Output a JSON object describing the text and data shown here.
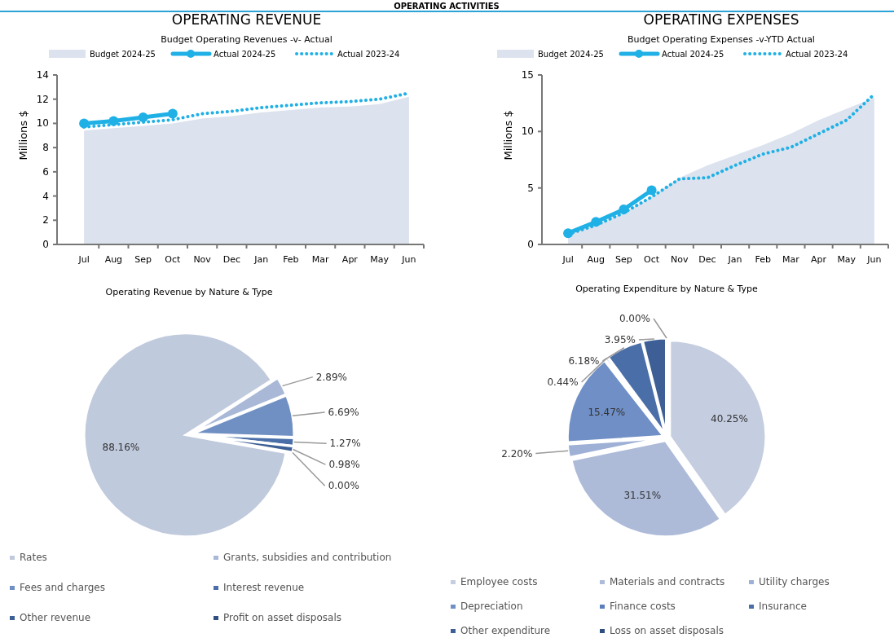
{
  "chart_data": [
    {
      "type": "line",
      "title": "OPERATING REVENUE",
      "subtitle": "Budget Operating Revenues -v- Actual",
      "ylabel": "Millions $",
      "annotations": [
        "OPERATING ACTIVITIES"
      ],
      "categories": [
        "Jul",
        "Aug",
        "Sep",
        "Oct",
        "Nov",
        "Dec",
        "Jan",
        "Feb",
        "Mar",
        "Apr",
        "May",
        "Jun"
      ],
      "ylim": [
        0,
        14
      ],
      "yticks": [
        0,
        2,
        4,
        6,
        8,
        10,
        12,
        14
      ],
      "legend": "top",
      "series": [
        {
          "name": "Budget 2024-25",
          "type": "area",
          "color": "#dce3ee",
          "values": [
            9.4,
            9.6,
            9.8,
            10.0,
            10.4,
            10.6,
            10.9,
            11.1,
            11.3,
            11.4,
            11.6,
            12.2
          ]
        },
        {
          "name": "Actual 2024-25",
          "color": "#1fb0e6",
          "marker": "circle",
          "line_style": "solid",
          "values": [
            10.0,
            10.2,
            10.5,
            10.8,
            null,
            null,
            null,
            null,
            null,
            null,
            null,
            null
          ]
        },
        {
          "name": "Actual 2023-24",
          "color": "#1fb0e6",
          "marker": "none",
          "line_style": "dotted",
          "values": [
            9.7,
            9.9,
            10.1,
            10.3,
            10.8,
            11.0,
            11.3,
            11.5,
            11.7,
            11.8,
            12.0,
            12.5
          ]
        }
      ]
    },
    {
      "type": "line",
      "title": "OPERATING EXPENSES",
      "subtitle": "Budget Operating Expenses -v-YTD Actual",
      "ylabel": "Millions $",
      "categories": [
        "Jul",
        "Aug",
        "Sep",
        "Oct",
        "Nov",
        "Dec",
        "Jan",
        "Feb",
        "Mar",
        "Apr",
        "May",
        "Jun"
      ],
      "ylim": [
        0,
        15
      ],
      "yticks": [
        0,
        5,
        10,
        15
      ],
      "legend": "top",
      "series": [
        {
          "name": "Budget 2024-25",
          "type": "area",
          "color": "#dce3ee",
          "values": [
            0.9,
            1.8,
            2.8,
            4.2,
            5.9,
            7.0,
            7.9,
            8.8,
            9.8,
            11.0,
            12.0,
            13.0
          ]
        },
        {
          "name": "Actual 2024-25",
          "color": "#1fb0e6",
          "marker": "circle",
          "line_style": "solid",
          "values": [
            1.0,
            2.0,
            3.1,
            4.8,
            null,
            null,
            null,
            null,
            null,
            null,
            null,
            null
          ]
        },
        {
          "name": "Actual 2023-24",
          "color": "#1fb0e6",
          "marker": "none",
          "line_style": "dotted",
          "values": [
            0.9,
            1.7,
            2.8,
            4.2,
            5.8,
            5.9,
            7.0,
            8.0,
            8.6,
            9.8,
            11.0,
            13.3
          ]
        }
      ]
    },
    {
      "type": "pie",
      "title": "Operating Revenue by Nature & Type",
      "legend": "bottom",
      "categories": [
        "Rates",
        "Grants, subsidies and contribution",
        "Fees and charges",
        "Interest revenue",
        "Other revenue",
        "Profit on asset disposals"
      ],
      "values": [
        88.16,
        2.89,
        6.69,
        1.27,
        0.98,
        0.0
      ],
      "value_labels": [
        "88.16%",
        "2.89%",
        "6.69%",
        "1.27%",
        "0.98%",
        "0.00%"
      ],
      "colors": [
        "#c0cadd",
        "#a9b8d6",
        "#7090c4",
        "#4a6fa8",
        "#3c5f95",
        "#2f4f80"
      ]
    },
    {
      "type": "pie",
      "title": "Operating Expenditure by Nature & Type",
      "legend": "bottom",
      "categories": [
        "Employee costs",
        "Materials and contracts",
        "Utility charges",
        "Depreciation",
        "Finance costs",
        "Insurance",
        "Other expenditure",
        "Loss on asset disposals"
      ],
      "values": [
        40.25,
        31.51,
        2.2,
        15.47,
        0.44,
        6.18,
        3.95,
        0.0
      ],
      "value_labels": [
        "40.25%",
        "31.51%",
        "2.20%",
        "15.47%",
        "0.44%",
        "6.18%",
        "3.95%",
        "0.00%"
      ],
      "colors": [
        "#c5cde0",
        "#adbbd9",
        "#9eb0d6",
        "#6f8fc6",
        "#5b7fbb",
        "#4a6ea8",
        "#3d5f95",
        "#2e4e80"
      ]
    }
  ]
}
